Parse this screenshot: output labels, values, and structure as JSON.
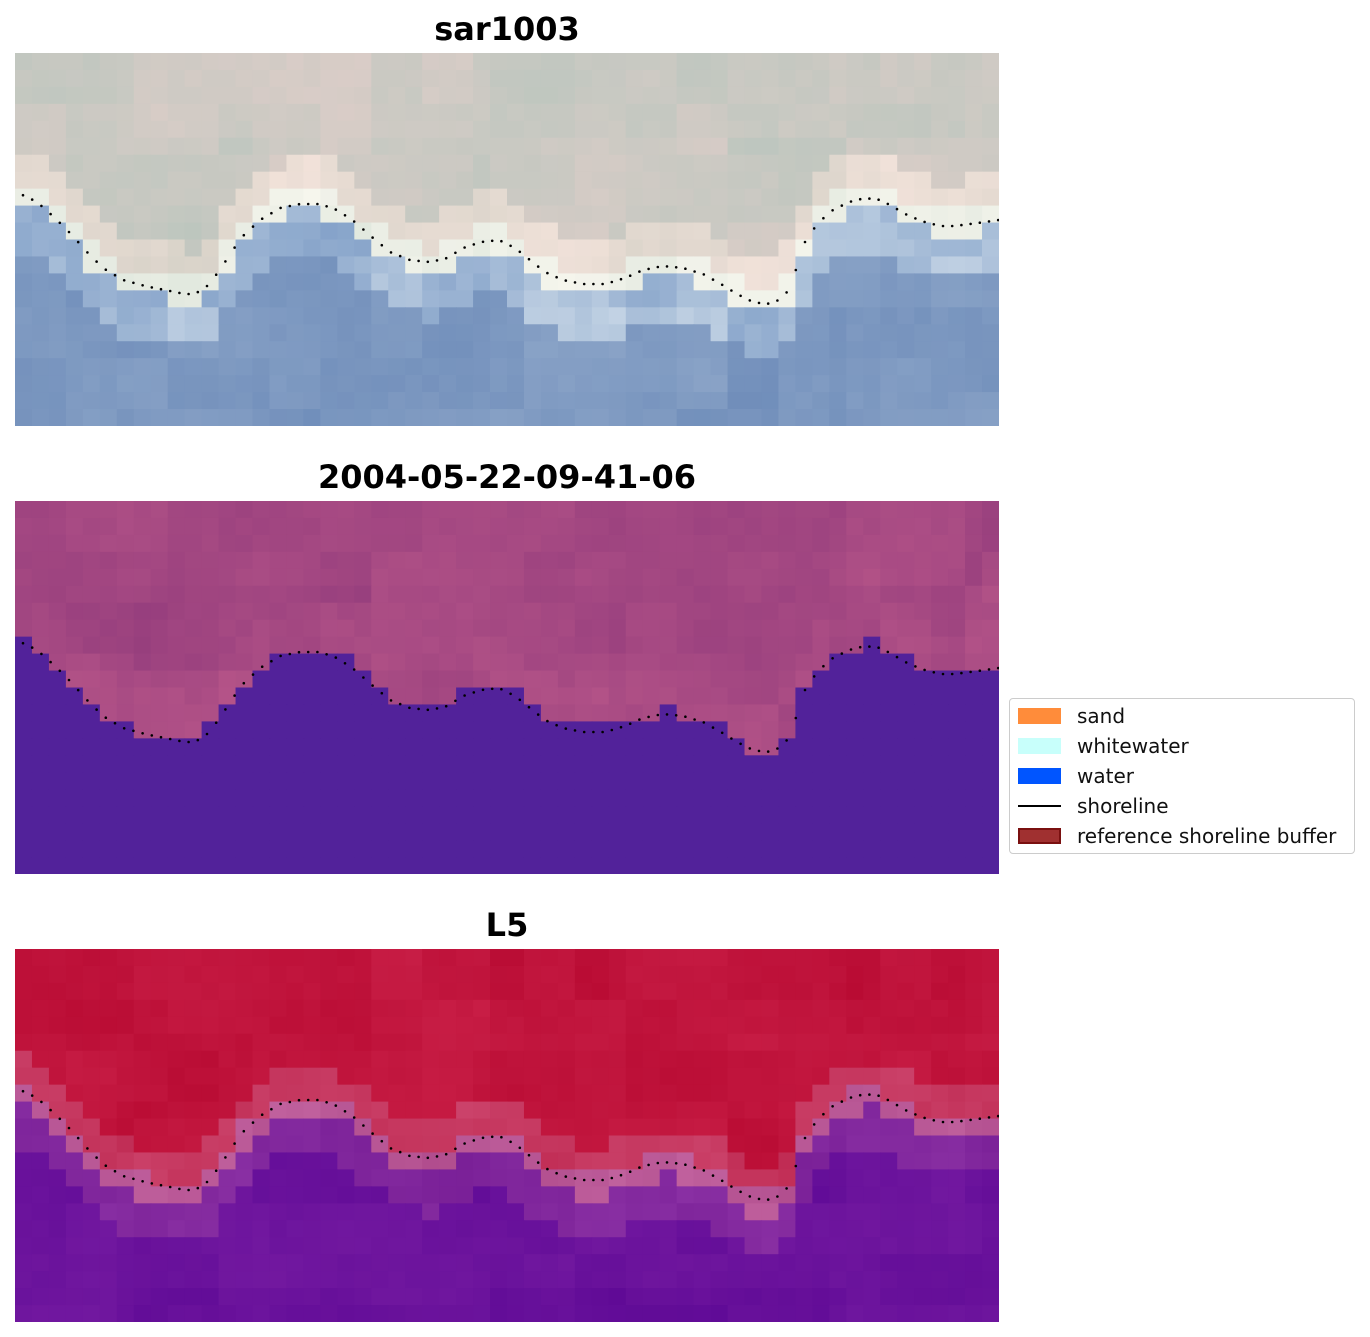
{
  "panels": [
    {
      "title": "sar1003",
      "type": "rgb-image"
    },
    {
      "title": "2004-05-22-09-41-06",
      "type": "classified-image"
    },
    {
      "title": "L5",
      "type": "mndwi-image"
    }
  ],
  "legend": {
    "items": [
      {
        "label": "sand",
        "kind": "patch",
        "color": "#ff8c3a"
      },
      {
        "label": "whitewater",
        "kind": "patch",
        "color": "#c8fffb"
      },
      {
        "label": "water",
        "kind": "patch",
        "color": "#0055ff"
      },
      {
        "label": "shoreline",
        "kind": "line",
        "color": "#000000"
      },
      {
        "label": "reference shoreline buffer",
        "kind": "patch",
        "color": "#a03030",
        "edge": "#7a1010"
      }
    ]
  },
  "colors": {
    "water_class": "#52229a",
    "land_class": "#a2477d",
    "ndwi_land": "#bf1740",
    "ndwi_water": "#68119c",
    "shoreline_dots": "#000000"
  }
}
